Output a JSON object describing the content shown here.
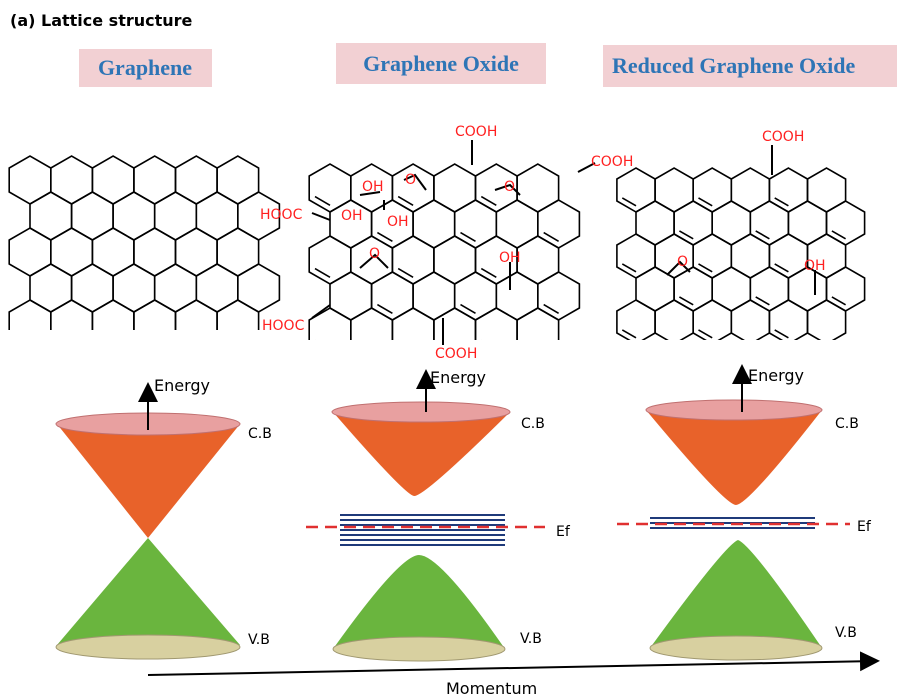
{
  "panel_label": "(a) Lattice structure",
  "materials": [
    {
      "title": "Graphene",
      "band_labels": {
        "conduction": "C.B",
        "valence": "V.B"
      },
      "energy_label": "Energy"
    },
    {
      "title": "Graphene Oxide",
      "functional_groups": [
        "COOH",
        "COOH",
        "OH",
        "O",
        "O",
        "HOOC",
        "OH",
        "OH",
        "O",
        "OH",
        "HOOC",
        "COOH"
      ],
      "band_labels": {
        "conduction": "C.B",
        "valence": "V.B",
        "fermi": "Ef"
      },
      "energy_label": "Energy"
    },
    {
      "title": "Reduced Graphene Oxide",
      "functional_groups": [
        "COOH",
        "O",
        "OH"
      ],
      "band_labels": {
        "conduction": "C.B",
        "valence": "V.B",
        "fermi": "Ef"
      },
      "energy_label": "Energy"
    }
  ],
  "momentum_label": "Momentum",
  "colors": {
    "title_text": "#2e75b6",
    "title_background": "#f2d0d3",
    "functional_group": "#ff2020",
    "conduction_band": "#e8622a",
    "conduction_top": "#e8a0a0",
    "valence_band": "#6ab53e",
    "valence_base": "#d8d0a0",
    "gap_lines": "#1f3a7a",
    "fermi_line": "#e03030"
  }
}
